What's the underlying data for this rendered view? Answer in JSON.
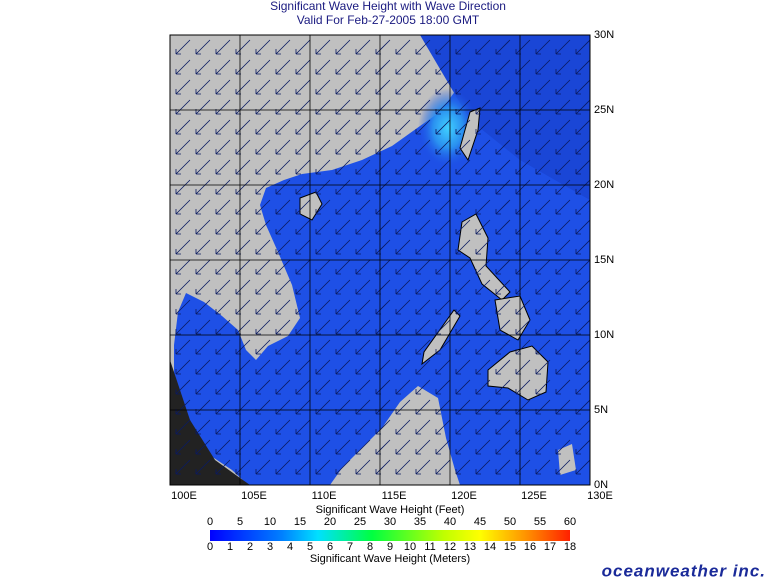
{
  "header": {
    "title": "Significant Wave Height with Wave Direction",
    "subtitle": "Valid For Feb-27-2005 18:00 GMT"
  },
  "map": {
    "longitudes": [
      "100E",
      "105E",
      "110E",
      "115E",
      "120E",
      "125E",
      "130E"
    ],
    "latitudes": [
      "30N",
      "25N",
      "20N",
      "15N",
      "10N",
      "5N",
      "0N"
    ]
  },
  "legend": {
    "feet_title": "Significant Wave Height (Feet)",
    "feet_ticks": [
      0,
      5,
      10,
      15,
      20,
      25,
      30,
      35,
      40,
      45,
      50,
      55,
      60
    ],
    "meters_title": "Significant Wave Height (Meters)",
    "meters_ticks": [
      0,
      1,
      2,
      3,
      4,
      5,
      6,
      7,
      8,
      9,
      10,
      11,
      12,
      13,
      14,
      15,
      16,
      17,
      18
    ]
  },
  "footer": {
    "logo": "oceanweather inc."
  }
}
